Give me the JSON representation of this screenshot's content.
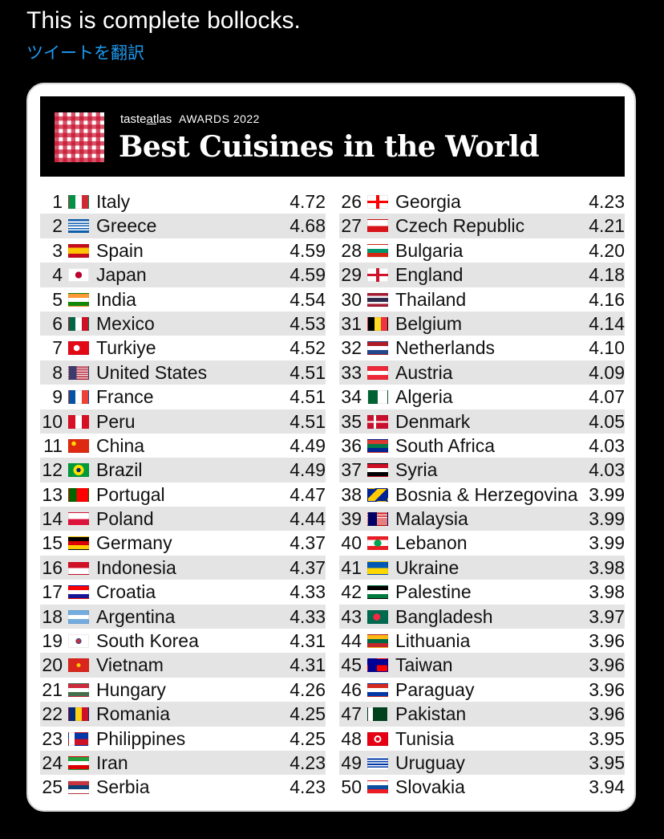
{
  "tweet": {
    "text": "This is complete bollocks.",
    "translate_label": "ツイートを翻訳"
  },
  "banner": {
    "brand_a": "taste",
    "brand_b": "at",
    "brand_c": "las",
    "awards": "AWARDS 2022",
    "title": "Best Cuisines in the World"
  },
  "rankings_left": [
    {
      "rank": "1",
      "country": "Italy",
      "score": "4.72",
      "flag": "linear-gradient(90deg,#009246 33%,#fff 33% 66%,#ce2b37 66%)"
    },
    {
      "rank": "2",
      "country": "Greece",
      "score": "4.68",
      "flag": "repeating-linear-gradient(180deg,#0d5eaf 0 11%,#fff 11% 22%)"
    },
    {
      "rank": "3",
      "country": "Spain",
      "score": "4.59",
      "flag": "linear-gradient(180deg,#c60b1e 25%,#ffc400 25% 75%,#c60b1e 75%)"
    },
    {
      "rank": "4",
      "country": "Japan",
      "score": "4.59",
      "flag": "radial-gradient(circle,#bc002d 28%,#fff 30%)"
    },
    {
      "rank": "5",
      "country": "India",
      "score": "4.54",
      "flag": "linear-gradient(180deg,#ff9933 33%,#fff 33% 66%,#138808 66%)"
    },
    {
      "rank": "6",
      "country": "Mexico",
      "score": "4.53",
      "flag": "linear-gradient(90deg,#006847 33%,#fff 33% 66%,#ce1126 66%)"
    },
    {
      "rank": "7",
      "country": "Turkiye",
      "score": "4.52",
      "flag": "radial-gradient(circle at 40% 50%,#fff 22%,#e30a17 24%)"
    },
    {
      "rank": "8",
      "country": "United States",
      "score": "4.51",
      "flag": "linear-gradient(90deg,#3c3b6e 40%,transparent 40%),repeating-linear-gradient(180deg,#b22234 0 8%,#fff 8% 15%)"
    },
    {
      "rank": "9",
      "country": "France",
      "score": "4.51",
      "flag": "linear-gradient(90deg,#0055a4 33%,#fff 33% 66%,#ef4135 66%)"
    },
    {
      "rank": "10",
      "country": "Peru",
      "score": "4.51",
      "flag": "linear-gradient(90deg,#d91023 33%,#fff 33% 66%,#d91023 66%)"
    },
    {
      "rank": "11",
      "country": "China",
      "score": "4.49",
      "flag": "radial-gradient(circle at 25% 30%,#ffde00 12%,#de2910 14%)"
    },
    {
      "rank": "12",
      "country": "Brazil",
      "score": "4.49",
      "flag": "radial-gradient(circle,#002776 18%,#ffdf00 20% 45%,#009c3b 47%)"
    },
    {
      "rank": "13",
      "country": "Portugal",
      "score": "4.47",
      "flag": "linear-gradient(90deg,#006600 40%,#ff0000 40%)"
    },
    {
      "rank": "14",
      "country": "Poland",
      "score": "4.44",
      "flag": "linear-gradient(180deg,#fff 50%,#dc143c 50%)"
    },
    {
      "rank": "15",
      "country": "Germany",
      "score": "4.37",
      "flag": "linear-gradient(180deg,#000 33%,#dd0000 33% 66%,#ffce00 66%)"
    },
    {
      "rank": "16",
      "country": "Indonesia",
      "score": "4.37",
      "flag": "linear-gradient(180deg,#ce1126 50%,#fff 50%)"
    },
    {
      "rank": "17",
      "country": "Croatia",
      "score": "4.33",
      "flag": "linear-gradient(180deg,#ff0000 33%,#fff 33% 66%,#171796 66%)"
    },
    {
      "rank": "18",
      "country": "Argentina",
      "score": "4.33",
      "flag": "linear-gradient(180deg,#74acdf 33%,#fff 33% 66%,#74acdf 66%)"
    },
    {
      "rank": "19",
      "country": "South Korea",
      "score": "4.31",
      "flag": "radial-gradient(circle,#cd2e3a 14%,#0047a0 24%,#fff 26%)"
    },
    {
      "rank": "20",
      "country": "Vietnam",
      "score": "4.31",
      "flag": "radial-gradient(circle,#ffcd00 16%,#da251d 18%)"
    },
    {
      "rank": "21",
      "country": "Hungary",
      "score": "4.26",
      "flag": "linear-gradient(180deg,#cd2a3e 33%,#fff 33% 66%,#436f4d 66%)"
    },
    {
      "rank": "22",
      "country": "Romania",
      "score": "4.25",
      "flag": "linear-gradient(90deg,#002b7f 33%,#fcd116 33% 66%,#ce1126 66%)"
    },
    {
      "rank": "23",
      "country": "Philippines",
      "score": "4.25",
      "flag": "linear-gradient(90deg,#fff 30%,transparent 30%),linear-gradient(180deg,#0038a8 50%,#ce1126 50%)"
    },
    {
      "rank": "24",
      "country": "Iran",
      "score": "4.23",
      "flag": "linear-gradient(180deg,#239f40 33%,#fff 33% 66%,#da0000 66%)"
    },
    {
      "rank": "25",
      "country": "Serbia",
      "score": "4.23",
      "flag": "linear-gradient(180deg,#c6363c 33%,#0c4076 33% 66%,#fff 66%)"
    }
  ],
  "rankings_right": [
    {
      "rank": "26",
      "country": "Georgia",
      "score": "4.23",
      "flag": "linear-gradient(90deg,transparent 42%,#ff0000 42% 58%,transparent 58%),linear-gradient(180deg,#fff 40%,#ff0000 40% 60%,#fff 60%)"
    },
    {
      "rank": "27",
      "country": "Czech Republic",
      "score": "4.21",
      "flag": "linear-gradient(180deg,#fff 50%,#d7141a 50%)"
    },
    {
      "rank": "28",
      "country": "Bulgaria",
      "score": "4.20",
      "flag": "linear-gradient(180deg,#fff 33%,#00966e 33% 66%,#d62612 66%)"
    },
    {
      "rank": "29",
      "country": "England",
      "score": "4.18",
      "flag": "linear-gradient(90deg,transparent 42%,#cf142b 42% 58%,transparent 58%),linear-gradient(180deg,#fff 40%,#cf142b 40% 60%,#fff 60%)"
    },
    {
      "rank": "30",
      "country": "Thailand",
      "score": "4.16",
      "flag": "linear-gradient(180deg,#a51931 16%,#f4f5f8 16% 33%,#2d2a4a 33% 66%,#f4f5f8 66% 83%,#a51931 83%)"
    },
    {
      "rank": "31",
      "country": "Belgium",
      "score": "4.14",
      "flag": "linear-gradient(90deg,#000 33%,#fdda24 33% 66%,#ef3340 66%)"
    },
    {
      "rank": "32",
      "country": "Netherlands",
      "score": "4.10",
      "flag": "linear-gradient(180deg,#ae1c28 33%,#fff 33% 66%,#21468b 66%)"
    },
    {
      "rank": "33",
      "country": "Austria",
      "score": "4.09",
      "flag": "linear-gradient(180deg,#ed2939 33%,#fff 33% 66%,#ed2939 66%)"
    },
    {
      "rank": "34",
      "country": "Algeria",
      "score": "4.07",
      "flag": "linear-gradient(90deg,#006233 50%,#fff 50%)"
    },
    {
      "rank": "35",
      "country": "Denmark",
      "score": "4.05",
      "flag": "linear-gradient(90deg,transparent 30%,#fff 30% 42%,transparent 42%),linear-gradient(180deg,#c8102e 42%,#fff 42% 58%,#c8102e 58%)"
    },
    {
      "rank": "36",
      "country": "South Africa",
      "score": "4.03",
      "flag": "linear-gradient(180deg,#de3831 33%,#007a4d 33% 66%,#002395 66%)"
    },
    {
      "rank": "37",
      "country": "Syria",
      "score": "4.03",
      "flag": "linear-gradient(180deg,#ce1126 33%,#fff 33% 66%,#000 66%)"
    },
    {
      "rank": "38",
      "country": "Bosnia & Herzegovina",
      "score": "3.99",
      "flag": "linear-gradient(135deg,#002395 30%,#fecb00 30% 60%,#002395 60%)"
    },
    {
      "rank": "39",
      "country": "Malaysia",
      "score": "3.99",
      "flag": "linear-gradient(90deg,#010066 45%,transparent 45%),repeating-linear-gradient(180deg,#cc0001 0 7%,#fff 7% 14%)"
    },
    {
      "rank": "40",
      "country": "Lebanon",
      "score": "3.99",
      "flag": "radial-gradient(ellipse 20% 30%,#00a651 90%,transparent 100%),linear-gradient(180deg,#ed1c24 25%,#fff 25% 75%,#ed1c24 75%)"
    },
    {
      "rank": "41",
      "country": "Ukraine",
      "score": "3.98",
      "flag": "linear-gradient(180deg,#0057b7 50%,#ffd700 50%)"
    },
    {
      "rank": "42",
      "country": "Palestine",
      "score": "3.98",
      "flag": "linear-gradient(180deg,#000 33%,#fff 33% 66%,#007a3d 66%)"
    },
    {
      "rank": "43",
      "country": "Bangladesh",
      "score": "3.97",
      "flag": "radial-gradient(circle at 45% 50%,#f42a41 28%,#006a4e 30%)"
    },
    {
      "rank": "44",
      "country": "Lithuania",
      "score": "3.96",
      "flag": "linear-gradient(180deg,#fdb913 33%,#006a44 33% 66%,#c1272d 66%)"
    },
    {
      "rank": "45",
      "country": "Taiwan",
      "score": "3.96",
      "flag": "linear-gradient(90deg,#000095 45%,transparent 45%),linear-gradient(180deg,#000095 50%,#fe0000 50%)"
    },
    {
      "rank": "46",
      "country": "Paraguay",
      "score": "3.96",
      "flag": "linear-gradient(180deg,#d52b1e 33%,#fff 33% 66%,#0038a8 66%)"
    },
    {
      "rank": "47",
      "country": "Pakistan",
      "score": "3.96",
      "flag": "linear-gradient(90deg,#fff 25%,#01411c 25%)"
    },
    {
      "rank": "48",
      "country": "Tunisia",
      "score": "3.95",
      "flag": "radial-gradient(circle,#e70013 16%,#fff 18% 30%,#e70013 32%)"
    },
    {
      "rank": "49",
      "country": "Uruguay",
      "score": "3.95",
      "flag": "repeating-linear-gradient(180deg,#fff 0 11%,#0038a8 11% 22%)"
    },
    {
      "rank": "50",
      "country": "Slovakia",
      "score": "3.94",
      "flag": "linear-gradient(180deg,#fff 33%,#0b4ea2 33% 66%,#ee1c25 66%)"
    }
  ]
}
